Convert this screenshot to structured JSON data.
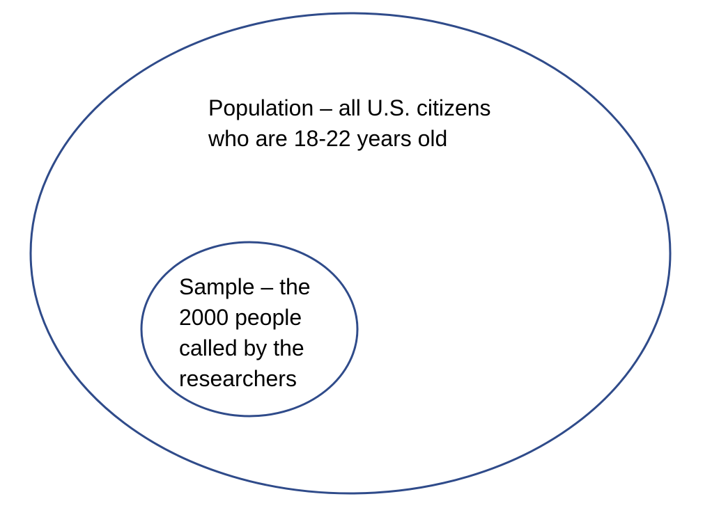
{
  "colors": {
    "background": "#ffffff",
    "outline": "#2F4B8A",
    "text": "#000000"
  },
  "population": {
    "lines": [
      "Population – all U.S. citizens",
      "who are 18-22 years old"
    ]
  },
  "sample": {
    "lines": [
      "Sample – the",
      "2000 people",
      "called by the",
      "researchers"
    ]
  }
}
